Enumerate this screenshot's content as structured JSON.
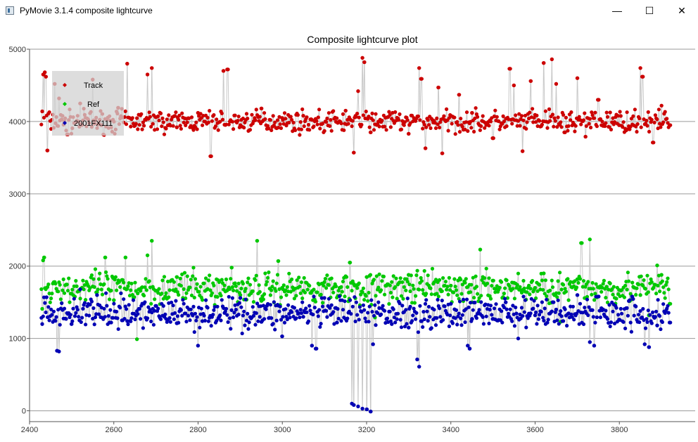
{
  "window": {
    "title": "PyMovie 3.1.4 composite lightcurve",
    "icon": "app-window-icon",
    "minimize_glyph": "—",
    "maximize_glyph": "☐",
    "close_glyph": "✕"
  },
  "chart_data": {
    "type": "scatter",
    "title": "Composite lightcurve plot",
    "xlabel": "",
    "ylabel": "",
    "xlim": [
      2400,
      3980
    ],
    "ylim": [
      -150,
      5000
    ],
    "xticks": [
      2400,
      2600,
      2800,
      3000,
      3200,
      3400,
      3600,
      3800
    ],
    "yticks": [
      0,
      1000,
      2000,
      3000,
      4000,
      5000
    ],
    "grid": "horizontal",
    "legend_position": "top-left",
    "connector_color": "#c8c8c8",
    "series": [
      {
        "name": "Track",
        "color": "#cc0000",
        "baseline": 4000,
        "noise": 120,
        "points": [
          [
            2430,
            4140
          ],
          [
            2433,
            4650
          ],
          [
            2436,
            4680
          ],
          [
            2439,
            4620
          ],
          [
            2442,
            3600
          ],
          [
            2460,
            4520
          ],
          [
            2470,
            4320
          ],
          [
            2490,
            3820
          ],
          [
            2520,
            4250
          ],
          [
            2550,
            4580
          ],
          [
            2570,
            3950
          ],
          [
            2610,
            4190
          ],
          [
            2632,
            4800
          ],
          [
            2680,
            4650
          ],
          [
            2690,
            4740
          ],
          [
            2700,
            4060
          ],
          [
            2750,
            3920
          ],
          [
            2800,
            4120
          ],
          [
            2830,
            3520
          ],
          [
            2860,
            4700
          ],
          [
            2870,
            4720
          ],
          [
            2900,
            3950
          ],
          [
            2950,
            4180
          ],
          [
            3000,
            4050
          ],
          [
            3050,
            4080
          ],
          [
            3100,
            3870
          ],
          [
            3150,
            4150
          ],
          [
            3170,
            3570
          ],
          [
            3180,
            4420
          ],
          [
            3190,
            4880
          ],
          [
            3195,
            4820
          ],
          [
            3210,
            3850
          ],
          [
            3250,
            4060
          ],
          [
            3300,
            3830
          ],
          [
            3325,
            4740
          ],
          [
            3330,
            4590
          ],
          [
            3340,
            3630
          ],
          [
            3370,
            4470
          ],
          [
            3380,
            3560
          ],
          [
            3420,
            4370
          ],
          [
            3450,
            4120
          ],
          [
            3500,
            3770
          ],
          [
            3540,
            4730
          ],
          [
            3550,
            4500
          ],
          [
            3570,
            3590
          ],
          [
            3590,
            4560
          ],
          [
            3620,
            4810
          ],
          [
            3640,
            4860
          ],
          [
            3650,
            4520
          ],
          [
            3670,
            3850
          ],
          [
            3700,
            4600
          ],
          [
            3720,
            3790
          ],
          [
            3750,
            4300
          ],
          [
            3800,
            3950
          ],
          [
            3850,
            4740
          ],
          [
            3855,
            4620
          ],
          [
            3880,
            3710
          ],
          [
            3900,
            4220
          ],
          [
            3920,
            3950
          ]
        ]
      },
      {
        "name": "Ref",
        "color": "#00c800",
        "baseline": 1700,
        "noise": 170,
        "points": [
          [
            2430,
            1410
          ],
          [
            2432,
            2080
          ],
          [
            2435,
            2120
          ],
          [
            2460,
            1780
          ],
          [
            2500,
            1620
          ],
          [
            2550,
            1720
          ],
          [
            2580,
            2120
          ],
          [
            2600,
            1530
          ],
          [
            2620,
            1810
          ],
          [
            2628,
            2120
          ],
          [
            2655,
            990
          ],
          [
            2660,
            1680
          ],
          [
            2680,
            2150
          ],
          [
            2690,
            2350
          ],
          [
            2700,
            1660
          ],
          [
            2750,
            1850
          ],
          [
            2800,
            1650
          ],
          [
            2850,
            1780
          ],
          [
            2880,
            1980
          ],
          [
            2900,
            1600
          ],
          [
            2940,
            2350
          ],
          [
            2950,
            1520
          ],
          [
            2990,
            2070
          ],
          [
            3000,
            1700
          ],
          [
            3050,
            1660
          ],
          [
            3100,
            1780
          ],
          [
            3150,
            1860
          ],
          [
            3160,
            2050
          ],
          [
            3200,
            1850
          ],
          [
            3220,
            1290
          ],
          [
            3250,
            1750
          ],
          [
            3300,
            1880
          ],
          [
            3350,
            1700
          ],
          [
            3400,
            1730
          ],
          [
            3450,
            1500
          ],
          [
            3470,
            2230
          ],
          [
            3500,
            1800
          ],
          [
            3550,
            1770
          ],
          [
            3600,
            1700
          ],
          [
            3620,
            1900
          ],
          [
            3660,
            1230
          ],
          [
            3700,
            1820
          ],
          [
            3710,
            2320
          ],
          [
            3730,
            2370
          ],
          [
            3750,
            1710
          ],
          [
            3800,
            1670
          ],
          [
            3850,
            1600
          ],
          [
            3870,
            1320
          ],
          [
            3890,
            2010
          ],
          [
            3900,
            1880
          ],
          [
            3920,
            1480
          ]
        ]
      },
      {
        "name": "2001FX111",
        "color": "#0000b4",
        "baseline": 1350,
        "noise": 170,
        "points": [
          [
            2430,
            1200
          ],
          [
            2440,
            1570
          ],
          [
            2460,
            1250
          ],
          [
            2465,
            830
          ],
          [
            2470,
            820
          ],
          [
            2500,
            1200
          ],
          [
            2520,
            1680
          ],
          [
            2560,
            1600
          ],
          [
            2590,
            1220
          ],
          [
            2620,
            1250
          ],
          [
            2660,
            1410
          ],
          [
            2700,
            1450
          ],
          [
            2720,
            1300
          ],
          [
            2750,
            1210
          ],
          [
            2800,
            900
          ],
          [
            2810,
            1240
          ],
          [
            2850,
            1300
          ],
          [
            2900,
            1560
          ],
          [
            2950,
            1230
          ],
          [
            3000,
            1030
          ],
          [
            3050,
            1300
          ],
          [
            3070,
            900
          ],
          [
            3080,
            860
          ],
          [
            3100,
            1560
          ],
          [
            3130,
            1220
          ],
          [
            3150,
            1270
          ],
          [
            3165,
            100
          ],
          [
            3170,
            80
          ],
          [
            3180,
            60
          ],
          [
            3190,
            30
          ],
          [
            3200,
            20
          ],
          [
            3210,
            -10
          ],
          [
            3215,
            920
          ],
          [
            3230,
            1420
          ],
          [
            3260,
            1200
          ],
          [
            3300,
            1150
          ],
          [
            3320,
            710
          ],
          [
            3325,
            610
          ],
          [
            3330,
            1240
          ],
          [
            3350,
            1300
          ],
          [
            3400,
            1480
          ],
          [
            3440,
            900
          ],
          [
            3445,
            860
          ],
          [
            3450,
            1270
          ],
          [
            3500,
            1270
          ],
          [
            3530,
            1500
          ],
          [
            3560,
            1000
          ],
          [
            3600,
            1320
          ],
          [
            3650,
            1400
          ],
          [
            3700,
            1600
          ],
          [
            3730,
            950
          ],
          [
            3740,
            900
          ],
          [
            3750,
            1580
          ],
          [
            3800,
            1260
          ],
          [
            3830,
            1580
          ],
          [
            3860,
            920
          ],
          [
            3870,
            880
          ],
          [
            3890,
            1180
          ],
          [
            3920,
            1220
          ]
        ]
      }
    ]
  }
}
